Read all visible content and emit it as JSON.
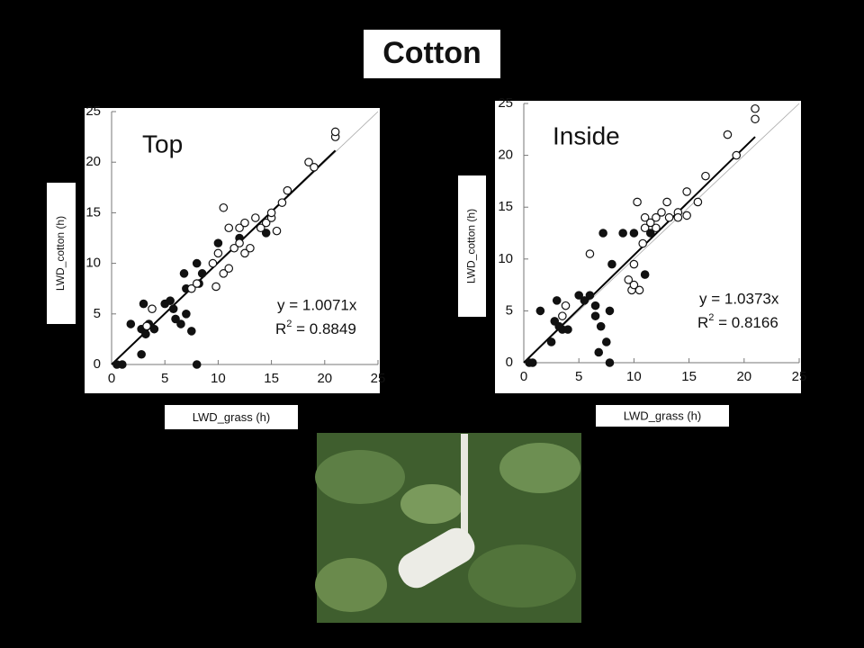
{
  "title": "Cotton",
  "chart_data": [
    {
      "type": "scatter",
      "title": "Top",
      "xlabel": "LWD_grass (h)",
      "ylabel": "LWD_cotton (h)",
      "xlim": [
        0,
        25
      ],
      "ylim": [
        0,
        25
      ],
      "xticks": [
        0,
        5,
        10,
        15,
        20,
        25
      ],
      "yticks": [
        0,
        5,
        10,
        15,
        20,
        25
      ],
      "fit": {
        "slope": 1.0071,
        "label": "y = 1.0071x"
      },
      "r2": {
        "symbol": "R",
        "sup": "2",
        "text": " = 0.8849"
      },
      "series": [
        {
          "marker": "filled",
          "color": "#111111",
          "x": [
            0.5,
            1,
            8,
            1.8,
            2.8,
            2.8,
            3,
            3.2,
            3.5,
            4,
            5,
            5.5,
            5.8,
            6,
            6.5,
            6.8,
            7,
            7,
            7.5,
            8,
            8.2,
            8.5,
            10,
            12,
            14.5
          ],
          "values": [
            0,
            0,
            0,
            4,
            1,
            3.5,
            6,
            3,
            4,
            3.5,
            6,
            6.3,
            5.5,
            4.5,
            4,
            9,
            5,
            7.5,
            3.3,
            10,
            8,
            9,
            12,
            12.5,
            13
          ]
        },
        {
          "marker": "open",
          "color": "#111111",
          "x": [
            3.3,
            3.8,
            7.5,
            8,
            9.5,
            9.8,
            10,
            10.5,
            11,
            10.5,
            11,
            11.5,
            12,
            12.5,
            13,
            12,
            12.5,
            13.5,
            14,
            14.5,
            15,
            15.5,
            15,
            16,
            16.5,
            18.5,
            19,
            21,
            21
          ],
          "values": [
            3.8,
            5.5,
            7.5,
            8,
            10,
            7.7,
            11,
            9,
            9.5,
            15.5,
            13.5,
            11.5,
            12,
            11,
            11.5,
            13.5,
            14,
            14.5,
            13.5,
            14,
            14.5,
            13.2,
            15,
            16,
            17.2,
            20,
            19.5,
            22.5,
            23
          ]
        }
      ]
    },
    {
      "type": "scatter",
      "title": "Inside",
      "xlabel": "LWD_grass (h)",
      "ylabel": "LWD_cotton (h)",
      "xlim": [
        0,
        25
      ],
      "ylim": [
        0,
        25
      ],
      "xticks": [
        0,
        5,
        10,
        15,
        20,
        25
      ],
      "yticks": [
        0,
        5,
        10,
        15,
        20,
        25
      ],
      "fit": {
        "slope": 1.0373,
        "label": "y = 1.0373x"
      },
      "r2": {
        "symbol": "R",
        "sup": "2",
        "text": " = 0.8166"
      },
      "series": [
        {
          "marker": "filled",
          "color": "#111111",
          "x": [
            0.5,
            0.8,
            1.5,
            2.5,
            2.8,
            3,
            3.2,
            3.5,
            4,
            5,
            5.5,
            6,
            6.5,
            6.5,
            6.8,
            7,
            7.2,
            7.5,
            7.8,
            7.8,
            8,
            9,
            10,
            11,
            11.5
          ],
          "values": [
            0,
            0,
            5,
            2,
            4,
            6,
            3.5,
            3.2,
            3.2,
            6.5,
            6,
            6.5,
            5.5,
            4.5,
            1,
            3.5,
            12.5,
            2,
            0,
            5,
            9.5,
            12.5,
            12.5,
            8.5,
            12.5
          ]
        },
        {
          "marker": "open",
          "color": "#111111",
          "x": [
            3.5,
            3.8,
            6,
            9.5,
            9.8,
            10,
            10,
            10.3,
            10.5,
            10.8,
            11,
            11,
            11.5,
            12,
            12,
            12.5,
            13,
            13.2,
            14,
            14,
            14.8,
            14.8,
            15.8,
            16.5,
            18.5,
            19.3,
            21,
            21
          ],
          "values": [
            4.5,
            5.5,
            10.5,
            8,
            7,
            9.5,
            7.5,
            15.5,
            7,
            11.5,
            13,
            14,
            13.5,
            14,
            13,
            14.5,
            15.5,
            14,
            14.5,
            14,
            16.5,
            14.2,
            15.5,
            18,
            22,
            20,
            23.5,
            24.5
          ]
        }
      ]
    }
  ]
}
